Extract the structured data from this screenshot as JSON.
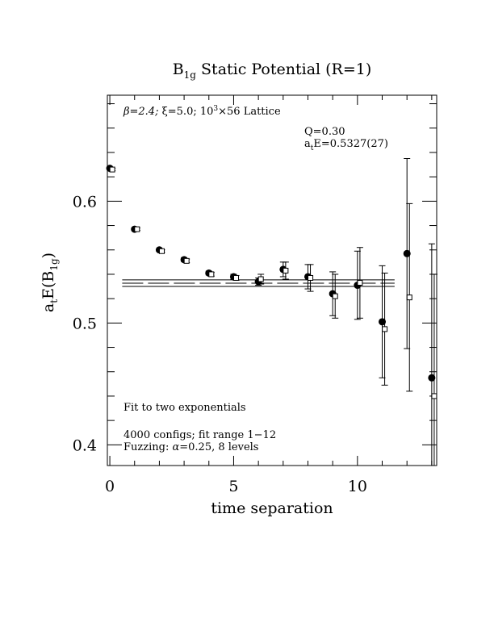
{
  "chart_data": {
    "type": "scatter",
    "title": "B",
    "title_sub": "1g",
    "title_rest": " Static Potential (R=1)",
    "xlabel": "time separation",
    "ylabel_main": "a",
    "ylabel_sub_t": "t",
    "ylabel_mid": "E(B",
    "ylabel_sub_1g": "1g",
    "ylabel_end": ")",
    "xlim": [
      -0.1,
      13.2
    ],
    "ylim": [
      0.383,
      0.687
    ],
    "x_ticks": [
      0,
      5,
      10
    ],
    "y_ticks": [
      0.4,
      0.5,
      0.6
    ],
    "x_tick_labels": [
      "0",
      "5",
      "10"
    ],
    "y_tick_labels": [
      "0.4",
      "0.5",
      "0.6"
    ],
    "annotations": {
      "lattice_beta": "β=2.4; ",
      "lattice_xi": "ξ=5.0; 10",
      "lattice_exp": "3",
      "lattice_rest": "×56 Lattice",
      "q_value": "Q=0.30",
      "energy_a": "a",
      "energy_t": "t",
      "energy_value": "E=0.5327(27)",
      "fit_type": "Fit to two exponentials",
      "configs": "4000 configs; fit range 1−12",
      "fuzzing_a": "Fuzzing: ",
      "fuzzing_alpha": "α",
      "fuzzing_b": "=0.25, 8 levels"
    },
    "fit": {
      "value": 0.5327,
      "error": 0.0027,
      "x_range": [
        0.5,
        11.5
      ]
    },
    "series": [
      {
        "marker": "filled-circle",
        "points": [
          {
            "x": 0,
            "y": 0.627,
            "err": 0.001
          },
          {
            "x": 1,
            "y": 0.577,
            "err": 0.001
          },
          {
            "x": 2,
            "y": 0.56,
            "err": 0.001
          },
          {
            "x": 3,
            "y": 0.552,
            "err": 0.0015
          },
          {
            "x": 4,
            "y": 0.541,
            "err": 0.0015
          },
          {
            "x": 5,
            "y": 0.538,
            "err": 0.002
          },
          {
            "x": 6,
            "y": 0.534,
            "err": 0.003
          },
          {
            "x": 7,
            "y": 0.544,
            "err": 0.006
          },
          {
            "x": 8,
            "y": 0.538,
            "err": 0.01
          },
          {
            "x": 9,
            "y": 0.524,
            "err": 0.018
          },
          {
            "x": 10,
            "y": 0.531,
            "err": 0.028
          },
          {
            "x": 11,
            "y": 0.501,
            "err": 0.046
          },
          {
            "x": 12,
            "y": 0.557,
            "err": 0.078
          },
          {
            "x": 13,
            "y": 0.455,
            "err": 0.11
          }
        ]
      },
      {
        "marker": "open-square",
        "points": [
          {
            "x": 0.1,
            "y": 0.626,
            "err": 0.001
          },
          {
            "x": 1.1,
            "y": 0.577,
            "err": 0.001
          },
          {
            "x": 2.1,
            "y": 0.559,
            "err": 0.001
          },
          {
            "x": 3.1,
            "y": 0.551,
            "err": 0.0015
          },
          {
            "x": 4.1,
            "y": 0.54,
            "err": 0.0015
          },
          {
            "x": 5.1,
            "y": 0.537,
            "err": 0.002
          },
          {
            "x": 6.1,
            "y": 0.536,
            "err": 0.004
          },
          {
            "x": 7.1,
            "y": 0.543,
            "err": 0.007
          },
          {
            "x": 8.1,
            "y": 0.537,
            "err": 0.011
          },
          {
            "x": 9.1,
            "y": 0.522,
            "err": 0.018
          },
          {
            "x": 10.1,
            "y": 0.533,
            "err": 0.029
          },
          {
            "x": 11.1,
            "y": 0.495,
            "err": 0.046
          },
          {
            "x": 12.1,
            "y": 0.521,
            "err": 0.077
          },
          {
            "x": 13.1,
            "y": 0.44,
            "err": 0.1
          }
        ]
      }
    ]
  }
}
